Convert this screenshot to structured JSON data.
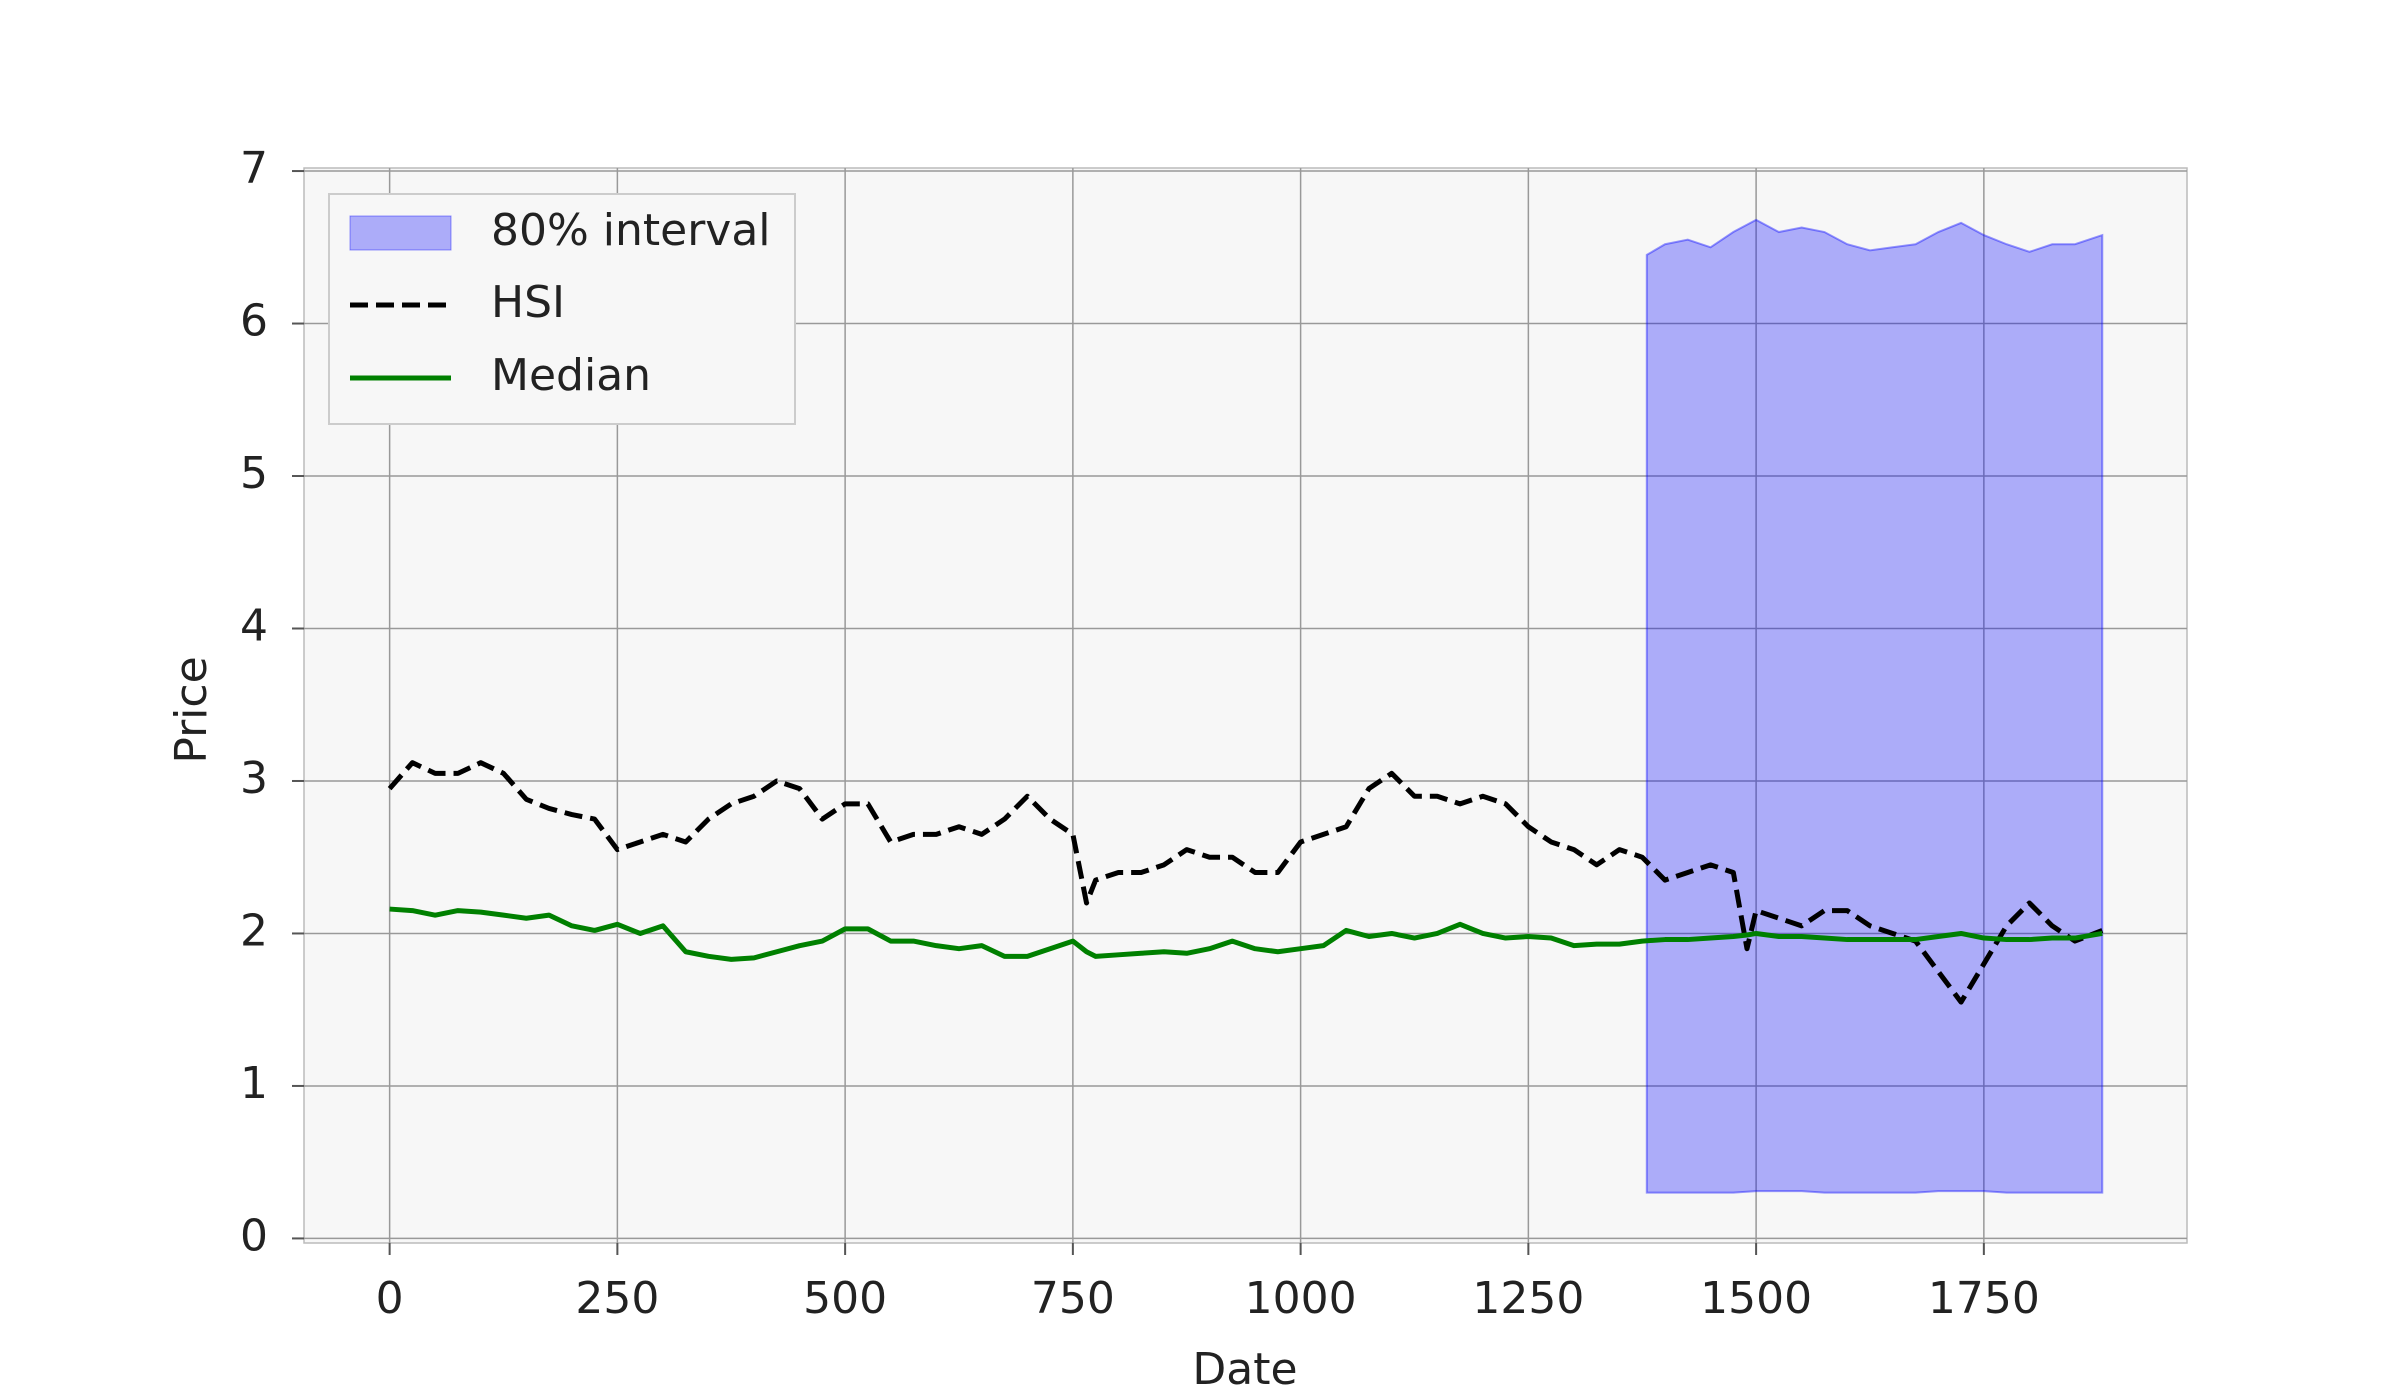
{
  "chart_data": {
    "type": "line",
    "xlabel": "Date",
    "ylabel": "Price",
    "xlim": [
      -94,
      1973
    ],
    "ylim": [
      -0.03,
      7.02
    ],
    "xticks": [
      0,
      250,
      500,
      750,
      1000,
      1250,
      1500,
      1750
    ],
    "yticks": [
      0,
      1,
      2,
      3,
      4,
      5,
      6,
      7
    ],
    "grid": true,
    "legend": "upper left",
    "x": [
      0,
      25,
      50,
      75,
      100,
      125,
      150,
      175,
      200,
      225,
      250,
      275,
      300,
      325,
      350,
      375,
      400,
      425,
      450,
      475,
      500,
      525,
      550,
      575,
      600,
      625,
      650,
      675,
      700,
      725,
      750,
      765,
      775,
      800,
      825,
      850,
      875,
      900,
      925,
      950,
      975,
      1000,
      1025,
      1050,
      1075,
      1100,
      1125,
      1150,
      1175,
      1200,
      1225,
      1250,
      1275,
      1300,
      1325,
      1350,
      1375,
      1400,
      1425,
      1450,
      1475,
      1490,
      1500,
      1525,
      1550,
      1575,
      1600,
      1625,
      1650,
      1675,
      1700,
      1725,
      1750,
      1775,
      1800,
      1825,
      1850,
      1880
    ],
    "band": {
      "name": "80% interval",
      "color": "#0000ff",
      "x": [
        1380,
        1400,
        1425,
        1450,
        1475,
        1500,
        1525,
        1550,
        1575,
        1600,
        1625,
        1650,
        1675,
        1700,
        1725,
        1750,
        1775,
        1800,
        1825,
        1850,
        1880
      ],
      "upper": [
        6.45,
        6.52,
        6.55,
        6.5,
        6.6,
        6.68,
        6.6,
        6.63,
        6.6,
        6.52,
        6.48,
        6.5,
        6.52,
        6.6,
        6.66,
        6.58,
        6.52,
        6.47,
        6.52,
        6.52,
        6.58
      ],
      "lower": [
        0.3,
        0.3,
        0.3,
        0.3,
        0.3,
        0.31,
        0.31,
        0.31,
        0.3,
        0.3,
        0.3,
        0.3,
        0.3,
        0.31,
        0.31,
        0.31,
        0.3,
        0.3,
        0.3,
        0.3,
        0.3
      ]
    },
    "series": [
      {
        "name": "HSI",
        "color": "#000000",
        "dash": true,
        "values": [
          2.95,
          3.12,
          3.05,
          3.05,
          3.12,
          3.05,
          2.88,
          2.82,
          2.78,
          2.75,
          2.55,
          2.6,
          2.65,
          2.6,
          2.75,
          2.85,
          2.9,
          3.0,
          2.95,
          2.75,
          2.85,
          2.85,
          2.6,
          2.65,
          2.65,
          2.7,
          2.65,
          2.75,
          2.9,
          2.75,
          2.65,
          2.2,
          2.35,
          2.4,
          2.4,
          2.45,
          2.55,
          2.5,
          2.5,
          2.4,
          2.4,
          2.6,
          2.65,
          2.7,
          2.95,
          3.05,
          2.9,
          2.9,
          2.85,
          2.9,
          2.85,
          2.7,
          2.6,
          2.55,
          2.45,
          2.55,
          2.5,
          2.35,
          2.4,
          2.45,
          2.4,
          1.9,
          2.15,
          2.1,
          2.05,
          2.15,
          2.15,
          2.05,
          2.0,
          1.95,
          1.75,
          1.55,
          1.8,
          2.05,
          2.2,
          2.05,
          1.95,
          2.02
        ]
      },
      {
        "name": "Median",
        "color": "#008000",
        "dash": false,
        "values": [
          2.16,
          2.15,
          2.12,
          2.15,
          2.14,
          2.12,
          2.1,
          2.12,
          2.05,
          2.02,
          2.06,
          2.0,
          2.05,
          1.88,
          1.85,
          1.83,
          1.84,
          1.88,
          1.92,
          1.95,
          2.03,
          2.03,
          1.95,
          1.95,
          1.92,
          1.9,
          1.92,
          1.85,
          1.85,
          1.9,
          1.95,
          1.88,
          1.85,
          1.86,
          1.87,
          1.88,
          1.87,
          1.9,
          1.95,
          1.9,
          1.88,
          1.9,
          1.92,
          2.02,
          1.98,
          2.0,
          1.97,
          2.0,
          2.06,
          2.0,
          1.97,
          1.98,
          1.97,
          1.92,
          1.93,
          1.93,
          1.95,
          1.96,
          1.96,
          1.97,
          1.98,
          1.99,
          2.0,
          1.98,
          1.98,
          1.97,
          1.96,
          1.96,
          1.96,
          1.96,
          1.98,
          2.0,
          1.97,
          1.96,
          1.96,
          1.97,
          1.97,
          2.0
        ]
      }
    ]
  }
}
